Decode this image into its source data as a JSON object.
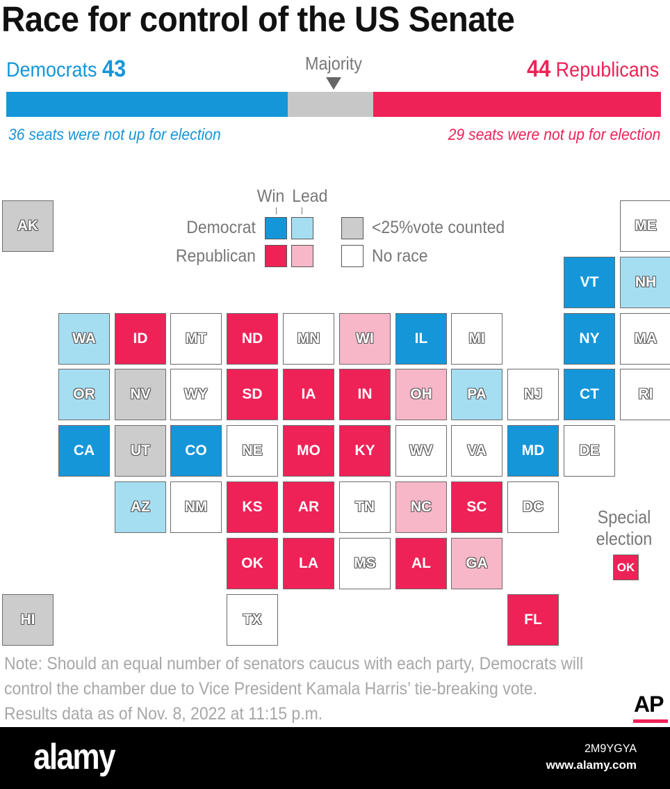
{
  "title": "Race for control of the US Senate",
  "header": {
    "dem_label": "Democrats",
    "dem_count": "43",
    "rep_label": "Republicans",
    "rep_count": "44",
    "majority_label": "Majority",
    "dem_note": "36 seats were not up for election",
    "rep_note": "29 seats were not up for election"
  },
  "bar": {
    "total_seats": 100,
    "dem": 43,
    "rep": 44,
    "undecided": 13
  },
  "colors": {
    "dem_win": "#1596d9",
    "dem_lead": "#a6def1",
    "rep_win": "#ee2257",
    "rep_lead": "#f7b7c8",
    "under_25": "#cccccc",
    "no_race": "#ffffff",
    "bar_gray": "#c7c7c7"
  },
  "legend": {
    "win_label": "Win",
    "lead_label": "Lead",
    "democrat_label": "Democrat",
    "republican_label": "Republican",
    "under_25_label": "<25%vote counted",
    "no_race_label": "No race"
  },
  "states": [
    {
      "abbr": "AK",
      "status": "under_25",
      "col": 0,
      "row": 0
    },
    {
      "abbr": "ME",
      "status": "no_race",
      "col": 11,
      "row": 0
    },
    {
      "abbr": "VT",
      "status": "dem_win",
      "col": 10,
      "row": 1
    },
    {
      "abbr": "NH",
      "status": "dem_lead",
      "col": 11,
      "row": 1
    },
    {
      "abbr": "WA",
      "status": "dem_lead",
      "col": 1,
      "row": 2
    },
    {
      "abbr": "ID",
      "status": "rep_win",
      "col": 2,
      "row": 2
    },
    {
      "abbr": "MT",
      "status": "no_race",
      "col": 3,
      "row": 2
    },
    {
      "abbr": "ND",
      "status": "rep_win",
      "col": 4,
      "row": 2
    },
    {
      "abbr": "MN",
      "status": "no_race",
      "col": 5,
      "row": 2
    },
    {
      "abbr": "WI",
      "status": "rep_lead",
      "col": 6,
      "row": 2
    },
    {
      "abbr": "IL",
      "status": "dem_win",
      "col": 7,
      "row": 2
    },
    {
      "abbr": "MI",
      "status": "no_race",
      "col": 8,
      "row": 2
    },
    {
      "abbr": "NY",
      "status": "dem_win",
      "col": 10,
      "row": 2
    },
    {
      "abbr": "MA",
      "status": "no_race",
      "col": 11,
      "row": 2
    },
    {
      "abbr": "OR",
      "status": "dem_lead",
      "col": 1,
      "row": 3
    },
    {
      "abbr": "NV",
      "status": "under_25",
      "col": 2,
      "row": 3
    },
    {
      "abbr": "WY",
      "status": "no_race",
      "col": 3,
      "row": 3
    },
    {
      "abbr": "SD",
      "status": "rep_win",
      "col": 4,
      "row": 3
    },
    {
      "abbr": "IA",
      "status": "rep_win",
      "col": 5,
      "row": 3
    },
    {
      "abbr": "IN",
      "status": "rep_win",
      "col": 6,
      "row": 3
    },
    {
      "abbr": "OH",
      "status": "rep_lead",
      "col": 7,
      "row": 3
    },
    {
      "abbr": "PA",
      "status": "dem_lead",
      "col": 8,
      "row": 3
    },
    {
      "abbr": "NJ",
      "status": "no_race",
      "col": 9,
      "row": 3
    },
    {
      "abbr": "CT",
      "status": "dem_win",
      "col": 10,
      "row": 3
    },
    {
      "abbr": "RI",
      "status": "no_race",
      "col": 11,
      "row": 3
    },
    {
      "abbr": "CA",
      "status": "dem_win",
      "col": 1,
      "row": 4
    },
    {
      "abbr": "UT",
      "status": "under_25",
      "col": 2,
      "row": 4
    },
    {
      "abbr": "CO",
      "status": "dem_win",
      "col": 3,
      "row": 4
    },
    {
      "abbr": "NE",
      "status": "no_race",
      "col": 4,
      "row": 4
    },
    {
      "abbr": "MO",
      "status": "rep_win",
      "col": 5,
      "row": 4
    },
    {
      "abbr": "KY",
      "status": "rep_win",
      "col": 6,
      "row": 4
    },
    {
      "abbr": "WV",
      "status": "no_race",
      "col": 7,
      "row": 4
    },
    {
      "abbr": "VA",
      "status": "no_race",
      "col": 8,
      "row": 4
    },
    {
      "abbr": "MD",
      "status": "dem_win",
      "col": 9,
      "row": 4
    },
    {
      "abbr": "DE",
      "status": "no_race",
      "col": 10,
      "row": 4
    },
    {
      "abbr": "AZ",
      "status": "dem_lead",
      "col": 2,
      "row": 5
    },
    {
      "abbr": "NM",
      "status": "no_race",
      "col": 3,
      "row": 5
    },
    {
      "abbr": "KS",
      "status": "rep_win",
      "col": 4,
      "row": 5
    },
    {
      "abbr": "AR",
      "status": "rep_win",
      "col": 5,
      "row": 5
    },
    {
      "abbr": "TN",
      "status": "no_race",
      "col": 6,
      "row": 5
    },
    {
      "abbr": "NC",
      "status": "rep_lead",
      "col": 7,
      "row": 5
    },
    {
      "abbr": "SC",
      "status": "rep_win",
      "col": 8,
      "row": 5
    },
    {
      "abbr": "DC",
      "status": "no_race",
      "col": 9,
      "row": 5
    },
    {
      "abbr": "OK",
      "status": "rep_win",
      "col": 4,
      "row": 6
    },
    {
      "abbr": "LA",
      "status": "rep_win",
      "col": 5,
      "row": 6
    },
    {
      "abbr": "MS",
      "status": "no_race",
      "col": 6,
      "row": 6
    },
    {
      "abbr": "AL",
      "status": "rep_win",
      "col": 7,
      "row": 6
    },
    {
      "abbr": "GA",
      "status": "rep_lead",
      "col": 8,
      "row": 6
    },
    {
      "abbr": "HI",
      "status": "under_25",
      "col": 0,
      "row": 7
    },
    {
      "abbr": "TX",
      "status": "no_race",
      "col": 4,
      "row": 7
    },
    {
      "abbr": "FL",
      "status": "rep_win",
      "col": 9,
      "row": 7
    }
  ],
  "special_election": {
    "label_line1": "Special",
    "label_line2": "election",
    "abbr": "OK",
    "status": "rep_win"
  },
  "footer": {
    "note_line1": "Note: Should an equal number of senators caucus with each party, Democrats will",
    "note_line2": "control the chamber due to Vice President Kamala Harris’ tie-breaking vote.",
    "note_line3": "Results data as of Nov. 8, 2022 at 11:15 p.m.",
    "ap_logo": "AP"
  },
  "watermark": {
    "logo": "alamy",
    "image_id": "2M9YGYA",
    "url": "www.alamy.com"
  }
}
